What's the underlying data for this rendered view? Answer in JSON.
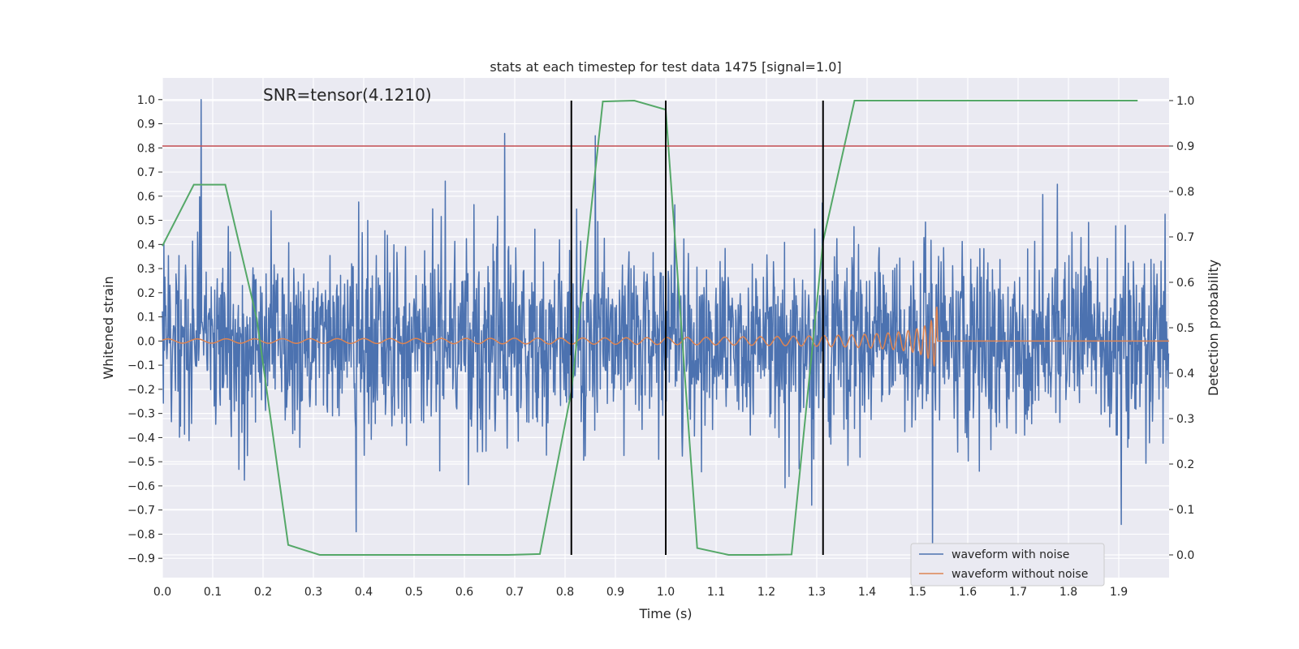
{
  "chart_data": {
    "type": "line",
    "title": "stats at each timestep for test data 1475 [signal=1.0]",
    "xlabel": "Time (s)",
    "ylabel": "Whitened strain",
    "y2label": "Detection probability",
    "annotation": "SNR=tensor(4.1210)",
    "xlim": [
      0.0,
      2.0
    ],
    "ylim": [
      -0.98,
      1.09
    ],
    "y2lim": [
      -0.05,
      1.05
    ],
    "xticks": [
      "0.0",
      "0.1",
      "0.2",
      "0.3",
      "0.4",
      "0.5",
      "0.6",
      "0.7",
      "0.8",
      "0.9",
      "1.0",
      "1.1",
      "1.2",
      "1.3",
      "1.4",
      "1.5",
      "1.6",
      "1.7",
      "1.8",
      "1.9"
    ],
    "yticks": [
      "1.0",
      "0.9",
      "0.8",
      "0.7",
      "0.6",
      "0.5",
      "0.4",
      "0.3",
      "0.2",
      "0.1",
      "0.0",
      "−0.1",
      "−0.2",
      "−0.3",
      "−0.4",
      "−0.5",
      "−0.6",
      "−0.7",
      "−0.8",
      "−0.9"
    ],
    "y2ticks": [
      "1.0",
      "0.9",
      "0.8",
      "0.7",
      "0.6",
      "0.5",
      "0.4",
      "0.3",
      "0.2",
      "0.1",
      "0.0"
    ],
    "grid": true,
    "legend_placement": "lower-right",
    "series": [
      {
        "name": "waveform with noise",
        "color": "#4c72b0",
        "style": "noise",
        "sample_rate": 1000,
        "std": 0.2,
        "spikes": [
          [
            0.077,
            1.0
          ],
          [
            0.68,
            0.86
          ],
          [
            0.86,
            0.85
          ],
          [
            0.385,
            -0.79
          ],
          [
            1.53,
            -0.88
          ],
          [
            1.29,
            -0.68
          ],
          [
            1.905,
            -0.76
          ]
        ]
      },
      {
        "name": "waveform without noise",
        "color": "#dd8452",
        "style": "chirp",
        "merger_time": 1.54,
        "end_amplitude": 0.17
      },
      {
        "name": "",
        "color": "#55a868",
        "axis": "y2",
        "x": [
          0.0,
          0.0625,
          0.125,
          0.1875,
          0.25,
          0.3125,
          0.375,
          0.4375,
          0.5,
          0.5625,
          0.625,
          0.6875,
          0.75,
          0.8125,
          0.875,
          0.9375,
          1.0,
          1.0625,
          1.125,
          1.1875,
          1.25,
          1.3125,
          1.375,
          1.4375,
          1.5,
          1.5625,
          1.625,
          1.6875,
          1.75,
          1.8125,
          1.875,
          1.9375
        ],
        "values": [
          0.68,
          0.815,
          0.815,
          0.52,
          0.022,
          0.0,
          0.0,
          0.0,
          0.0,
          0.0,
          0.0,
          0.0,
          0.002,
          0.36,
          0.998,
          1.0,
          0.98,
          0.015,
          0.0,
          0.0,
          0.001,
          0.69,
          1.0,
          1.0,
          1.0,
          1.0,
          1.0,
          1.0,
          1.0,
          1.0,
          1.0,
          1.0
        ]
      }
    ],
    "hlines": [
      {
        "y2": 0.9,
        "color": "#c44e52"
      }
    ],
    "vlines": [
      {
        "x": 0.8125,
        "color": "#000000"
      },
      {
        "x": 1.0,
        "color": "#000000"
      },
      {
        "x": 1.3125,
        "color": "#000000"
      }
    ]
  }
}
